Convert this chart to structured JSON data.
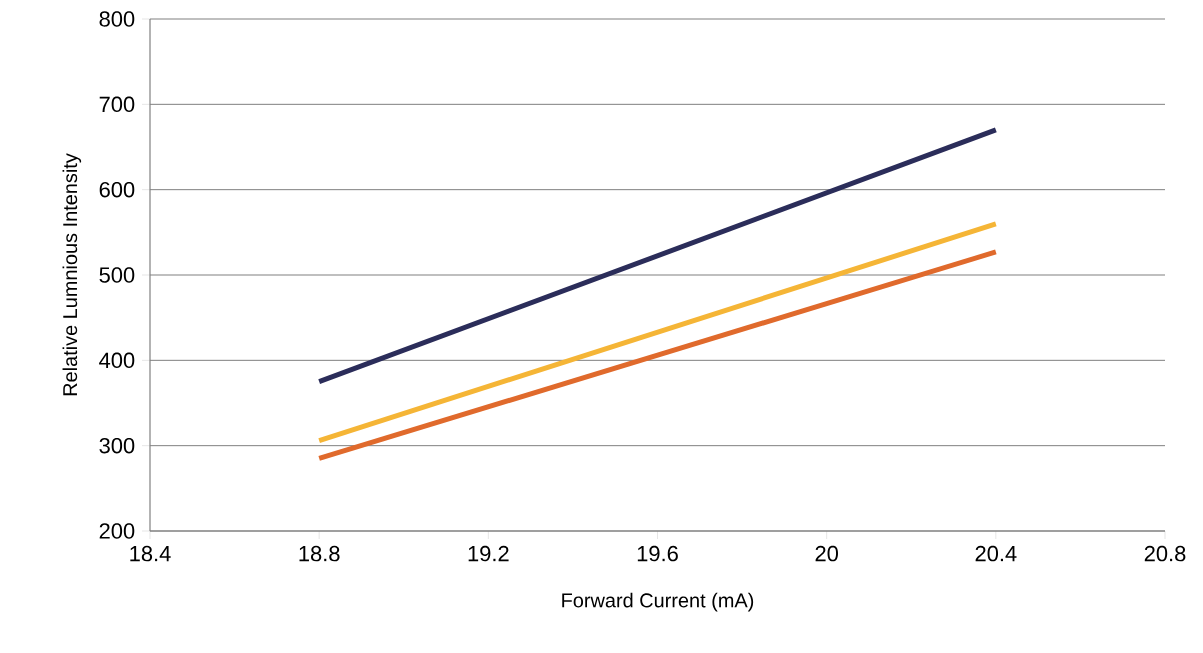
{
  "chart_data": {
    "type": "line",
    "xlabel": "Forward Current (mA)",
    "ylabel": "Relative Lumnious Intensity",
    "x": [
      18.8,
      20.4
    ],
    "series": [
      {
        "color": "#2b2d5a",
        "values": [
          375,
          670
        ]
      },
      {
        "color": "#f5b536",
        "values": [
          306,
          560
        ]
      },
      {
        "color": "#e06a2c",
        "values": [
          285,
          527
        ]
      }
    ],
    "xlim": [
      18.4,
      20.8
    ],
    "xticks": [
      18.4,
      18.8,
      19.2,
      19.6,
      20,
      20.4,
      20.8
    ],
    "ylim": [
      200,
      800
    ],
    "yticks": [
      200,
      300,
      400,
      500,
      600,
      700,
      800
    ],
    "grid": "y",
    "marker": "none",
    "line_style": "solid"
  }
}
